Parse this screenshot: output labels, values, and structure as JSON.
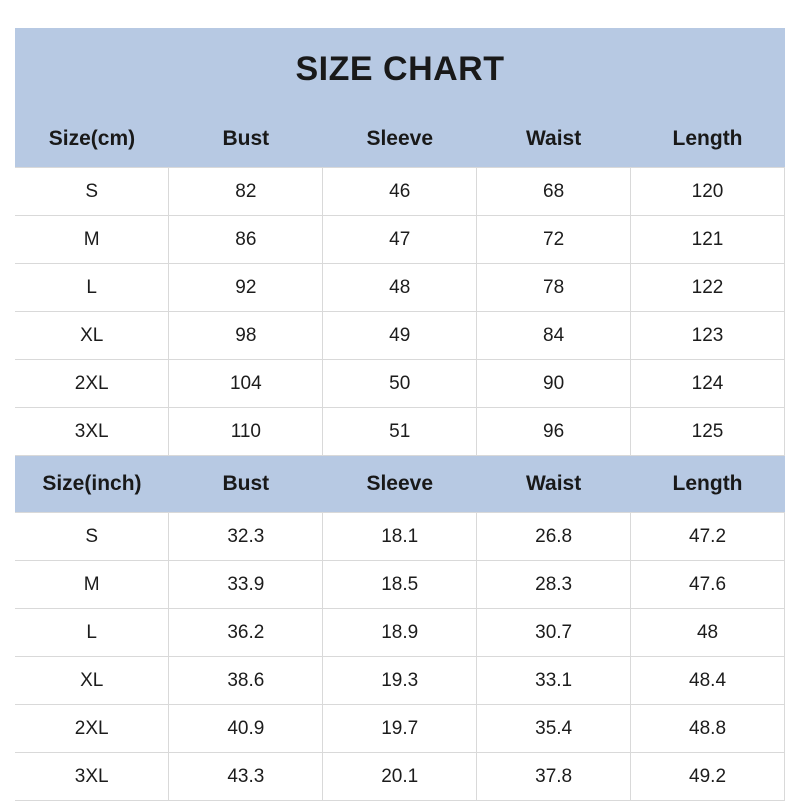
{
  "title": "SIZE CHART",
  "colors": {
    "header_bg": "#b7c9e3",
    "cell_border": "#d9d9d9",
    "text": "#1c1c1c",
    "page_bg": "#ffffff"
  },
  "cm_table": {
    "headers": [
      "Size(cm)",
      "Bust",
      "Sleeve",
      "Waist",
      "Length"
    ],
    "rows": [
      [
        "S",
        "82",
        "46",
        "68",
        "120"
      ],
      [
        "M",
        "86",
        "47",
        "72",
        "121"
      ],
      [
        "L",
        "92",
        "48",
        "78",
        "122"
      ],
      [
        "XL",
        "98",
        "49",
        "84",
        "123"
      ],
      [
        "2XL",
        "104",
        "50",
        "90",
        "124"
      ],
      [
        "3XL",
        "110",
        "51",
        "96",
        "125"
      ]
    ]
  },
  "inch_table": {
    "headers": [
      "Size(inch)",
      "Bust",
      "Sleeve",
      "Waist",
      "Length"
    ],
    "rows": [
      [
        "S",
        "32.3",
        "18.1",
        "26.8",
        "47.2"
      ],
      [
        "M",
        "33.9",
        "18.5",
        "28.3",
        "47.6"
      ],
      [
        "L",
        "36.2",
        "18.9",
        "30.7",
        "48"
      ],
      [
        "XL",
        "38.6",
        "19.3",
        "33.1",
        "48.4"
      ],
      [
        "2XL",
        "40.9",
        "19.7",
        "35.4",
        "48.8"
      ],
      [
        "3XL",
        "43.3",
        "20.1",
        "37.8",
        "49.2"
      ]
    ]
  },
  "chart_data": [
    {
      "type": "table",
      "title": "SIZE CHART",
      "unit": "cm",
      "columns": [
        "Size(cm)",
        "Bust",
        "Sleeve",
        "Waist",
        "Length"
      ],
      "rows": [
        {
          "size": "S",
          "bust": 82,
          "sleeve": 46,
          "waist": 68,
          "length": 120
        },
        {
          "size": "M",
          "bust": 86,
          "sleeve": 47,
          "waist": 72,
          "length": 121
        },
        {
          "size": "L",
          "bust": 92,
          "sleeve": 48,
          "waist": 78,
          "length": 122
        },
        {
          "size": "XL",
          "bust": 98,
          "sleeve": 49,
          "waist": 84,
          "length": 123
        },
        {
          "size": "2XL",
          "bust": 104,
          "sleeve": 50,
          "waist": 90,
          "length": 124
        },
        {
          "size": "3XL",
          "bust": 110,
          "sleeve": 51,
          "waist": 96,
          "length": 125
        }
      ]
    },
    {
      "type": "table",
      "title": "SIZE CHART",
      "unit": "inch",
      "columns": [
        "Size(inch)",
        "Bust",
        "Sleeve",
        "Waist",
        "Length"
      ],
      "rows": [
        {
          "size": "S",
          "bust": 32.3,
          "sleeve": 18.1,
          "waist": 26.8,
          "length": 47.2
        },
        {
          "size": "M",
          "bust": 33.9,
          "sleeve": 18.5,
          "waist": 28.3,
          "length": 47.6
        },
        {
          "size": "L",
          "bust": 36.2,
          "sleeve": 18.9,
          "waist": 30.7,
          "length": 48
        },
        {
          "size": "XL",
          "bust": 38.6,
          "sleeve": 19.3,
          "waist": 33.1,
          "length": 48.4
        },
        {
          "size": "2XL",
          "bust": 40.9,
          "sleeve": 19.7,
          "waist": 35.4,
          "length": 48.8
        },
        {
          "size": "3XL",
          "bust": 43.3,
          "sleeve": 20.1,
          "waist": 37.8,
          "length": 49.2
        }
      ]
    }
  ]
}
